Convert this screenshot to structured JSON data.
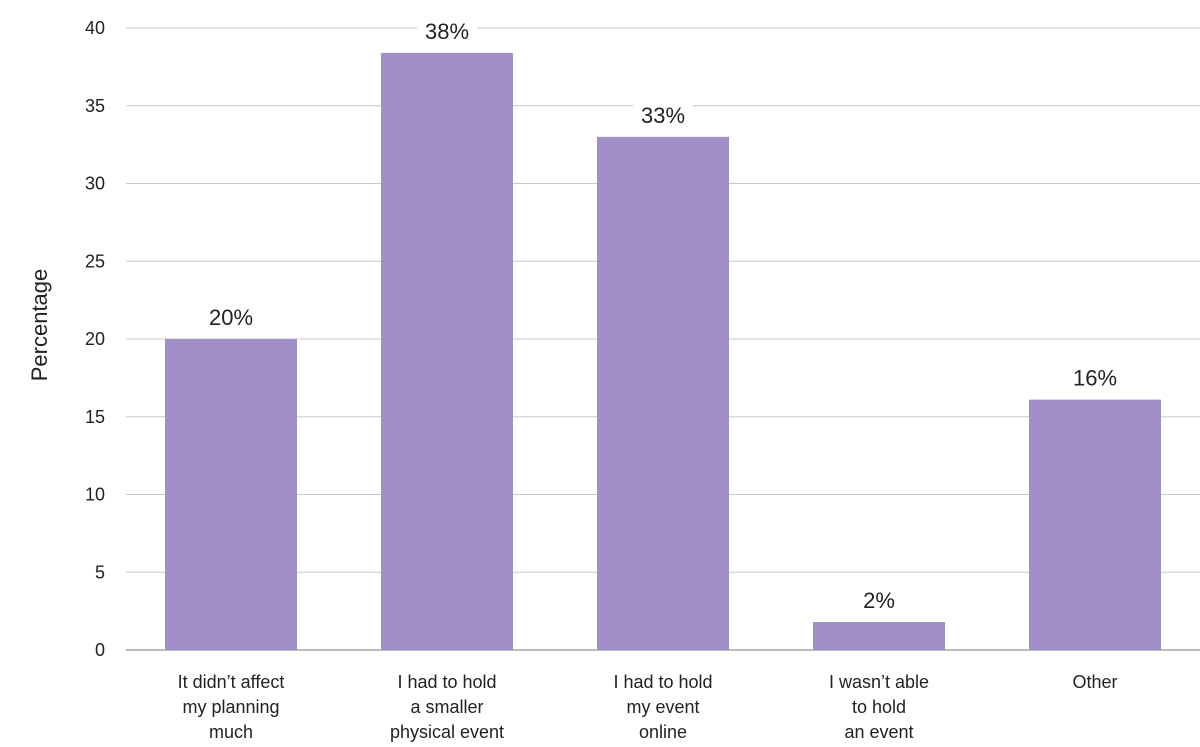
{
  "chart_data": {
    "type": "bar",
    "title": "",
    "xlabel": "",
    "ylabel": "Percentage",
    "ylim": [
      0,
      40
    ],
    "yticks": [
      0,
      5,
      10,
      15,
      20,
      25,
      30,
      35,
      40
    ],
    "grid": true,
    "bar_color": "#9f8fc6",
    "categories": [
      [
        "It didn’t affect",
        "my planning",
        "much"
      ],
      [
        "I had to hold",
        "a smaller",
        "physical event"
      ],
      [
        "I had to hold",
        "my event",
        "online"
      ],
      [
        "I wasn’t able",
        "to hold",
        "an event"
      ],
      [
        "Other"
      ]
    ],
    "values": [
      20,
      38.4,
      33,
      1.8,
      16.1
    ],
    "data_labels": [
      "20%",
      "38%",
      "33%",
      "2%",
      "16%"
    ]
  }
}
